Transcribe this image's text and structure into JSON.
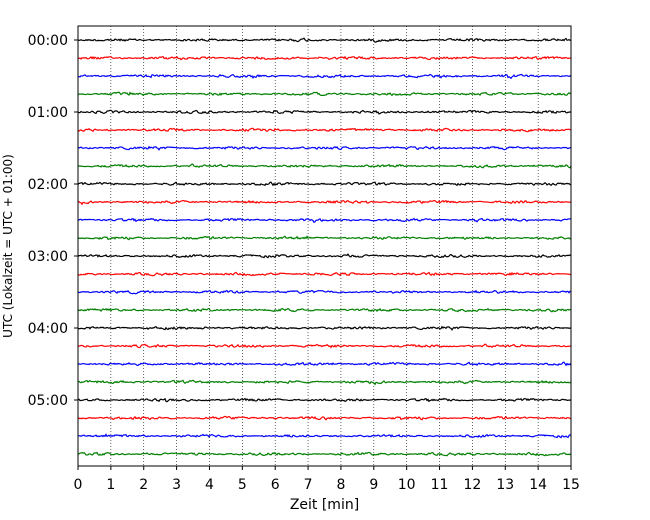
{
  "chart_data": {
    "type": "line",
    "title": "",
    "xlabel": "Zeit  [min]",
    "ylabel": "UTC (Lokalzeit = UTC + 01:00)",
    "xlim": [
      0,
      15
    ],
    "x_ticks": [
      0,
      1,
      2,
      3,
      4,
      5,
      6,
      7,
      8,
      9,
      10,
      11,
      12,
      13,
      14,
      15
    ],
    "x_tick_labels": [
      "0",
      "1",
      "2",
      "3",
      "4",
      "5",
      "6",
      "7",
      "8",
      "9",
      "10",
      "11",
      "12",
      "13",
      "14",
      "15"
    ],
    "y_tick_labels": [
      "00:00",
      "01:00",
      "02:00",
      "03:00",
      "04:00",
      "05:00"
    ],
    "y_tick_trace_index": [
      0,
      4,
      8,
      12,
      16,
      20
    ],
    "trace_count": 24,
    "trace_minutes": 15,
    "trace_colors": [
      "#000000",
      "#ff0000",
      "#0000ff",
      "#008000"
    ],
    "vertical_grid": "dotted",
    "legend": "none"
  }
}
